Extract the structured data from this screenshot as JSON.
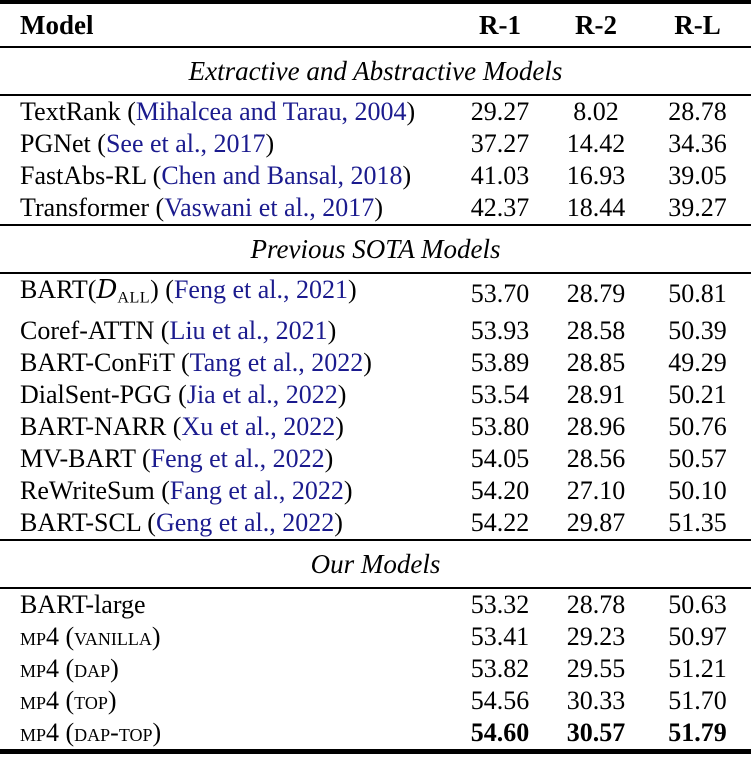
{
  "colors": {
    "background": "#ffffff",
    "text": "#000000",
    "rule": "#000000",
    "citation_link": "#1b1b8e"
  },
  "header": {
    "model": "Model",
    "r1": "R-1",
    "r2": "R-2",
    "rl": "R-L"
  },
  "sections": [
    {
      "title": "Extractive and Abstractive Models",
      "rows": [
        {
          "pre": "TextRank (",
          "cite": "Mihalcea and Tarau, 2004",
          "suf": ")",
          "r1": "29.27",
          "r2": "8.02",
          "rl": "28.78"
        },
        {
          "pre": "PGNet (",
          "cite": "See et al., 2017",
          "suf": ")",
          "r1": "37.27",
          "r2": "14.42",
          "rl": "34.36"
        },
        {
          "pre": "FastAbs-RL (",
          "cite": "Chen and Bansal, 2018",
          "suf": ")",
          "r1": "41.03",
          "r2": "16.93",
          "rl": "39.05"
        },
        {
          "pre": "Transformer (",
          "cite": "Vaswani et al., 2017",
          "suf": ")",
          "r1": "42.37",
          "r2": "18.44",
          "rl": "39.27"
        }
      ]
    },
    {
      "title": "Previous SOTA Models",
      "rows": [
        {
          "pre": "BART(",
          "cal": "D",
          "sub": "ALL",
          "mid": ") (",
          "cite": "Feng et al., 2021",
          "suf": ")",
          "r1": "53.70",
          "r2": "28.79",
          "rl": "50.81"
        },
        {
          "pre": "Coref-ATTN (",
          "cite": "Liu et al., 2021",
          "suf": ")",
          "r1": "53.93",
          "r2": "28.58",
          "rl": "50.39"
        },
        {
          "pre": "BART-ConFiT (",
          "cite": "Tang et al., 2022",
          "suf": ")",
          "r1": "53.89",
          "r2": "28.85",
          "rl": "49.29"
        },
        {
          "pre": "DialSent-PGG (",
          "cite": "Jia et al., 2022",
          "suf": ")",
          "r1": "53.54",
          "r2": "28.91",
          "rl": "50.21"
        },
        {
          "pre": "BART-NARR (",
          "cite": "Xu et al., 2022",
          "suf": ")",
          "r1": "53.80",
          "r2": "28.96",
          "rl": "50.76"
        },
        {
          "pre": "MV-BART (",
          "cite": "Feng et al., 2022",
          "suf": ")",
          "r1": "54.05",
          "r2": "28.56",
          "rl": "50.57"
        },
        {
          "pre": "ReWriteSum (",
          "cite": "Fang et al., 2022",
          "suf": ")",
          "r1": "54.20",
          "r2": "27.10",
          "rl": "50.10"
        },
        {
          "pre": "BART-SCL (",
          "cite": "Geng et al., 2022",
          "suf": ")",
          "r1": "54.22",
          "r2": "29.87",
          "rl": "51.35"
        }
      ]
    },
    {
      "title": "Our Models",
      "rows": [
        {
          "pre": "BART-large",
          "r1": "53.32",
          "r2": "28.78",
          "rl": "50.63"
        },
        {
          "pre": "mp4 (vanilla)",
          "r1": "53.41",
          "r2": "29.23",
          "rl": "50.97"
        },
        {
          "pre": "mp4 (dap)",
          "r1": "53.82",
          "r2": "29.55",
          "rl": "51.21"
        },
        {
          "pre": "mp4 (top)",
          "r1": "54.56",
          "r2": "30.33",
          "rl": "51.70"
        },
        {
          "pre": "mp4 (dap-top)",
          "r1": "54.60",
          "r2": "30.57",
          "rl": "51.79"
        }
      ]
    }
  ]
}
